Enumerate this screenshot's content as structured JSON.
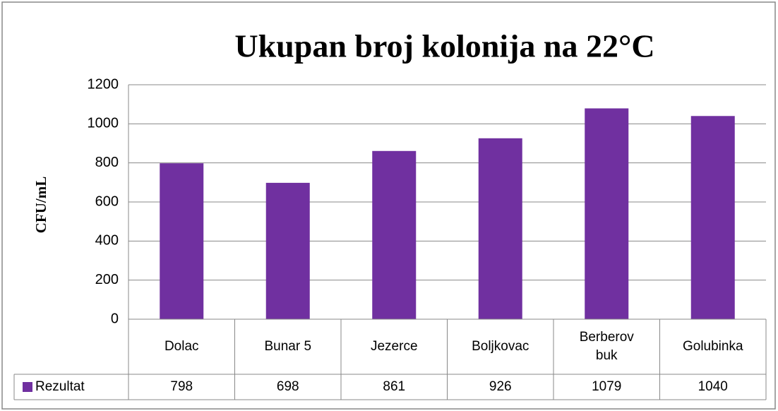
{
  "chart_data": {
    "type": "bar",
    "title": "Ukupan broj kolonija na 22°C",
    "y_label": "CFU/mL",
    "categories": [
      "Dolac",
      "Bunar 5",
      "Jezerce",
      "Boljkovac",
      "Berberov buk",
      "Golubinka"
    ],
    "series": [
      {
        "name": "Rezultat",
        "color": "#7030a0",
        "values": [
          798,
          698,
          861,
          926,
          1079,
          1040
        ]
      }
    ],
    "ylim": [
      0,
      1200
    ],
    "yticks": [
      0,
      200,
      400,
      600,
      800,
      1000,
      1200
    ],
    "grid": true,
    "data_table": true
  }
}
